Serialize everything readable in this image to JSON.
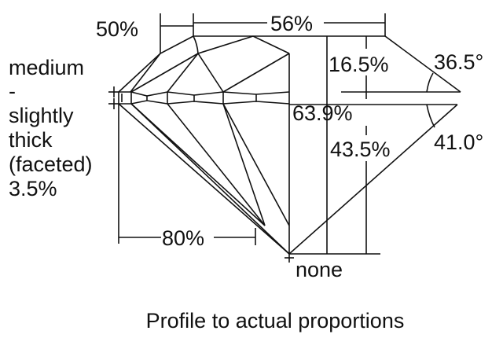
{
  "diagram": {
    "subject": "diamond profile",
    "caption": "Profile to actual proportions",
    "line_color": "#111111",
    "background": "#ffffff",
    "labels": {
      "star_length": "50%",
      "table": "56%",
      "crown_height": "16.5%",
      "crown_angle": "36.5°",
      "total_depth": "63.9%",
      "pavilion_depth": "43.5%",
      "pavilion_angle": "41.0°",
      "lower_half": "80%",
      "culet": "none"
    },
    "girdle": {
      "lines": [
        "medium",
        "-",
        "slightly",
        "thick",
        "(faceted)",
        "3.5%"
      ]
    }
  }
}
